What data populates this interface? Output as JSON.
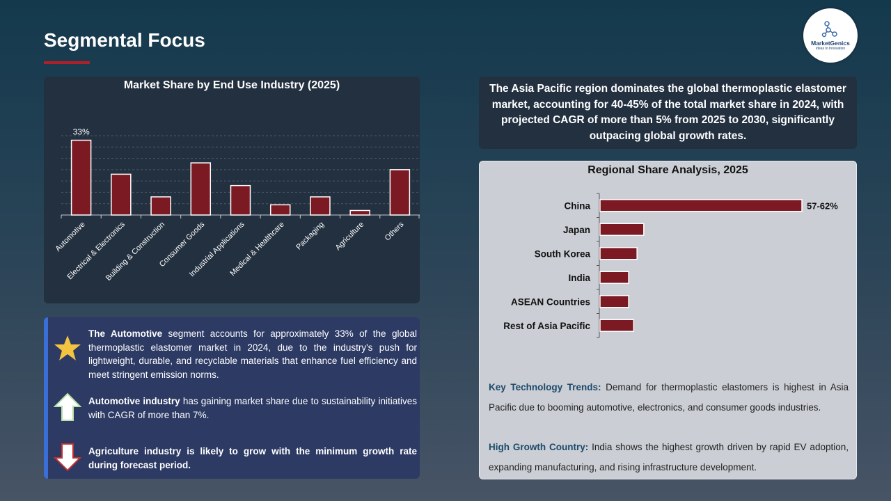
{
  "header": {
    "title": "Segmental Focus"
  },
  "logo": {
    "name": "MarketGenics",
    "tagline": "Ideas to Innovation"
  },
  "chart_data": [
    {
      "type": "bar",
      "title": "Market Share by End Use Industry (2025)",
      "categories": [
        "Automotive",
        "Electrical & Electronics",
        "Building & Construction",
        "Consumer Goods",
        "Industrial Applications",
        "Medical & Healthcare",
        "Packaging",
        "Agriculture",
        "Others"
      ],
      "values": [
        33,
        18,
        8,
        23,
        13,
        4.5,
        8,
        2,
        20
      ],
      "data_labels": [
        "33%",
        "",
        "",
        "",
        "",
        "",
        "",
        "",
        ""
      ],
      "ylim": [
        0,
        35
      ],
      "grid": true,
      "colors": {
        "bar": "#7b1a22",
        "bar_border": "#ffffff"
      }
    },
    {
      "type": "bar",
      "orientation": "horizontal",
      "title": "Regional Share Analysis, 2025",
      "categories": [
        "China",
        "Japan",
        "South Korea",
        "India",
        "ASEAN Countries",
        "Rest of Asia Pacific"
      ],
      "values": [
        60,
        13,
        11,
        8.5,
        8.5,
        10
      ],
      "data_labels": [
        "57-62%",
        "",
        "",
        "",
        "",
        ""
      ],
      "xlim": [
        0,
        60
      ],
      "colors": {
        "bar": "#7b1a22",
        "bar_border": "#ffffff"
      }
    }
  ],
  "bullets": [
    {
      "icon": "star-icon",
      "bold": "The Automotive",
      "text": " segment accounts for approximately 33% of the global thermoplastic elastomer market in 2024, due to the industry's push for lightweight, durable, and recyclable materials that enhance fuel efficiency and meet stringent emission norms."
    },
    {
      "icon": "up-arrow-icon",
      "bold": "Automotive industry",
      "text": " has gaining market share due to sustainability initiatives with CAGR of more than 7%."
    },
    {
      "icon": "down-arrow-icon",
      "bold": "Agriculture industry is likely to grow with the minimum growth rate during forecast period.",
      "text": ""
    }
  ],
  "callout": {
    "text": "The Asia Pacific region dominates the global thermoplastic elastomer market, accounting for 40-45% of the total market share in 2024, with projected CAGR of more than 5% from 2025 to 2030, significantly outpacing global growth rates."
  },
  "insights": {
    "trends_label": "Key Technology Trends:",
    "trends_text": " Demand for thermoplastic elastomers is highest in Asia Pacific due to booming automotive, electronics, and consumer goods industries.",
    "growth_label": "High Growth Country:",
    "growth_text": " India shows the highest growth driven by rapid EV adoption, expanding manufacturing, and rising infrastructure development."
  },
  "colors": {
    "accent": "#b0202a",
    "bar": "#7b1a22",
    "highlight_label": "#1c4a6b"
  }
}
